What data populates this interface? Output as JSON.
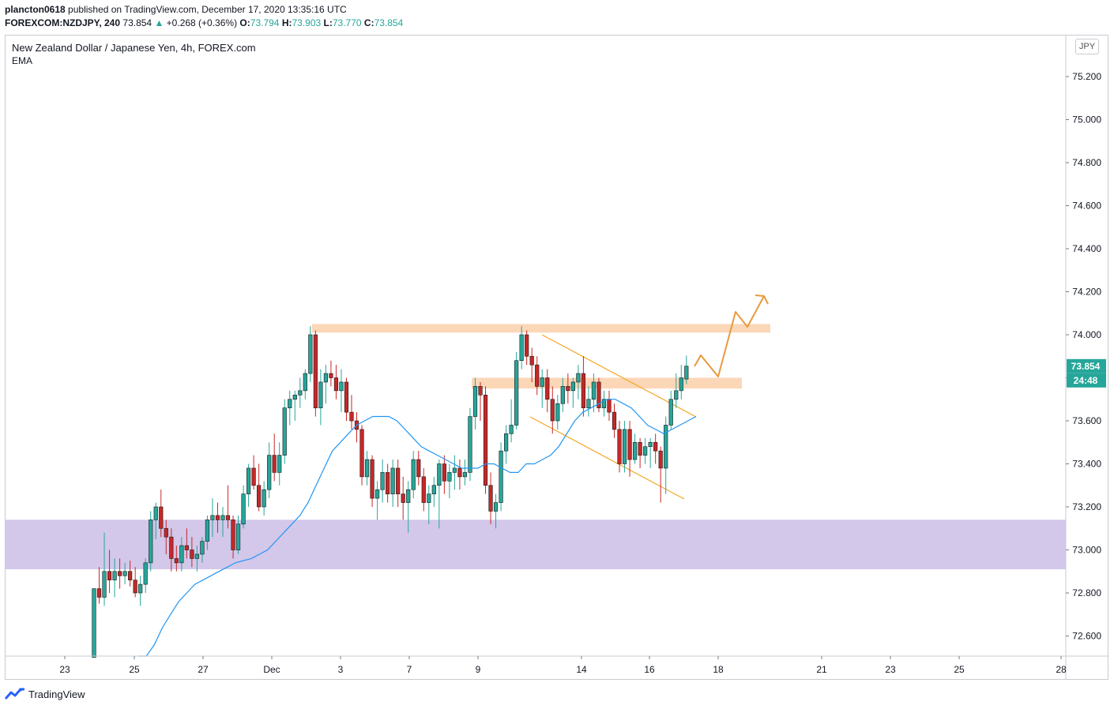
{
  "header": {
    "publisher": "plancton0618",
    "published_text": "published on TradingView.com, December 17, 2020 13:35:16 UTC",
    "symbol": "FOREXCOM:NZDJPY, 240",
    "last": "73.854",
    "change": "+0.268 (+0.36%)",
    "o_label": "O:",
    "o_value": "73.794",
    "h_label": "H:",
    "h_value": "73.903",
    "l_label": "L:",
    "l_value": "73.770",
    "c_label": "C:",
    "c_value": "73.854"
  },
  "legend": {
    "title": "New Zealand Dollar / Japanese Yen, 4h, FOREX.com",
    "indicator": "EMA"
  },
  "currency_button": "JPY",
  "price_badge": "73.854",
  "countdown_badge": "24:48",
  "brand": {
    "name": "TradingView",
    "icon": "tradingview-logo-icon"
  },
  "colors": {
    "up": "#26a69a",
    "down": "#c62828",
    "ema": "#2196f3",
    "channel": "#f5a623",
    "resistance_zone": "#fbd3b0",
    "support_zone": "#d1c4e9",
    "projection": "#e89a3c"
  },
  "chart_data": {
    "type": "candlestick",
    "title": "New Zealand Dollar / Japanese Yen, 4h, FOREX.com",
    "ylim": [
      72.5,
      75.35
    ],
    "y_ticks": [
      "75.200",
      "75.000",
      "74.800",
      "74.600",
      "74.400",
      "74.200",
      "74.000",
      "73.800",
      "73.600",
      "73.400",
      "73.200",
      "73.000",
      "72.800",
      "72.600"
    ],
    "x_ticks": [
      "23",
      "25",
      "27",
      "Dec",
      "3",
      "7",
      "9",
      "14",
      "16",
      "18",
      "21",
      "23",
      "25",
      "28"
    ],
    "series": [
      {
        "name": "NZDJPY",
        "ohlc": [
          [
            72.5,
            72.82,
            72.48,
            72.82
          ],
          [
            72.82,
            72.92,
            72.75,
            72.78
          ],
          [
            72.78,
            73.08,
            72.74,
            72.9
          ],
          [
            72.9,
            73.0,
            72.8,
            72.86
          ],
          [
            72.86,
            72.96,
            72.78,
            72.9
          ],
          [
            72.9,
            72.96,
            72.82,
            72.88
          ],
          [
            72.88,
            72.94,
            72.84,
            72.9
          ],
          [
            72.9,
            72.95,
            72.83,
            72.86
          ],
          [
            72.86,
            72.92,
            72.78,
            72.8
          ],
          [
            72.8,
            72.88,
            72.74,
            72.84
          ],
          [
            72.84,
            72.96,
            72.8,
            72.94
          ],
          [
            72.94,
            73.18,
            72.9,
            73.14
          ],
          [
            73.14,
            73.22,
            73.05,
            73.2
          ],
          [
            73.2,
            73.28,
            73.06,
            73.1
          ],
          [
            73.1,
            73.14,
            72.98,
            73.06
          ],
          [
            73.06,
            73.1,
            72.9,
            72.96
          ],
          [
            72.96,
            73.02,
            72.9,
            72.94
          ],
          [
            72.94,
            73.06,
            72.9,
            73.02
          ],
          [
            73.02,
            73.1,
            72.96,
            73.0
          ],
          [
            73.0,
            73.06,
            72.92,
            72.96
          ],
          [
            72.96,
            73.02,
            72.9,
            72.98
          ],
          [
            72.98,
            73.06,
            72.94,
            73.04
          ],
          [
            73.04,
            73.16,
            73.0,
            73.14
          ],
          [
            73.14,
            73.24,
            73.06,
            73.16
          ],
          [
            73.16,
            73.22,
            73.08,
            73.14
          ],
          [
            73.14,
            73.2,
            73.06,
            73.16
          ],
          [
            73.16,
            73.3,
            73.1,
            73.14
          ],
          [
            73.14,
            73.16,
            72.96,
            73.0
          ],
          [
            73.0,
            73.16,
            72.98,
            73.12
          ],
          [
            73.12,
            73.3,
            73.1,
            73.26
          ],
          [
            73.26,
            73.4,
            73.2,
            73.38
          ],
          [
            73.38,
            73.44,
            73.28,
            73.3
          ],
          [
            73.3,
            73.4,
            73.18,
            73.2
          ],
          [
            73.2,
            73.32,
            73.16,
            73.28
          ],
          [
            73.28,
            73.5,
            73.24,
            73.44
          ],
          [
            73.44,
            73.54,
            73.32,
            73.36
          ],
          [
            73.36,
            73.5,
            73.3,
            73.44
          ],
          [
            73.44,
            73.7,
            73.4,
            73.66
          ],
          [
            73.66,
            73.74,
            73.58,
            73.7
          ],
          [
            73.7,
            73.74,
            73.6,
            73.72
          ],
          [
            73.72,
            73.8,
            73.66,
            73.74
          ],
          [
            73.74,
            73.84,
            73.7,
            73.82
          ],
          [
            73.82,
            74.04,
            73.78,
            74.0
          ],
          [
            74.0,
            74.02,
            73.62,
            73.66
          ],
          [
            73.66,
            73.84,
            73.58,
            73.78
          ],
          [
            73.78,
            73.86,
            73.68,
            73.82
          ],
          [
            73.82,
            73.88,
            73.76,
            73.8
          ],
          [
            73.8,
            73.86,
            73.7,
            73.74
          ],
          [
            73.74,
            73.84,
            73.64,
            73.78
          ],
          [
            73.78,
            73.8,
            73.6,
            73.64
          ],
          [
            73.64,
            73.72,
            73.56,
            73.6
          ],
          [
            73.6,
            73.64,
            73.5,
            73.56
          ],
          [
            73.56,
            73.58,
            73.3,
            73.34
          ],
          [
            73.34,
            73.46,
            73.3,
            73.42
          ],
          [
            73.42,
            73.44,
            73.2,
            73.24
          ],
          [
            73.24,
            73.32,
            73.14,
            73.28
          ],
          [
            73.28,
            73.42,
            73.22,
            73.36
          ],
          [
            73.36,
            73.4,
            73.22,
            73.26
          ],
          [
            73.26,
            73.42,
            73.2,
            73.38
          ],
          [
            73.38,
            73.42,
            73.2,
            73.26
          ],
          [
            73.26,
            73.34,
            73.14,
            73.22
          ],
          [
            73.22,
            73.32,
            73.08,
            73.28
          ],
          [
            73.28,
            73.46,
            73.24,
            73.42
          ],
          [
            73.42,
            73.46,
            73.3,
            73.34
          ],
          [
            73.34,
            73.38,
            73.18,
            73.22
          ],
          [
            73.22,
            73.3,
            73.12,
            73.26
          ],
          [
            73.26,
            73.34,
            73.2,
            73.3
          ],
          [
            73.3,
            73.42,
            73.1,
            73.4
          ],
          [
            73.4,
            73.44,
            73.26,
            73.32
          ],
          [
            73.32,
            73.4,
            73.24,
            73.36
          ],
          [
            73.36,
            73.44,
            73.28,
            73.38
          ],
          [
            73.38,
            73.42,
            73.28,
            73.34
          ],
          [
            73.34,
            73.42,
            73.3,
            73.36
          ],
          [
            73.36,
            73.66,
            73.32,
            73.62
          ],
          [
            73.62,
            73.8,
            73.56,
            73.76
          ],
          [
            73.76,
            73.78,
            73.6,
            73.72
          ],
          [
            73.72,
            73.76,
            73.26,
            73.3
          ],
          [
            73.3,
            73.36,
            73.12,
            73.18
          ],
          [
            73.18,
            73.26,
            73.1,
            73.22
          ],
          [
            73.22,
            73.5,
            73.18,
            73.46
          ],
          [
            73.46,
            73.58,
            73.4,
            73.54
          ],
          [
            73.54,
            73.7,
            73.5,
            73.58
          ],
          [
            73.58,
            73.92,
            73.56,
            73.88
          ],
          [
            73.88,
            74.04,
            73.84,
            74.0
          ],
          [
            74.0,
            74.02,
            73.86,
            73.9
          ],
          [
            73.9,
            73.94,
            73.78,
            73.86
          ],
          [
            73.86,
            73.9,
            73.72,
            73.76
          ],
          [
            73.76,
            73.84,
            73.66,
            73.8
          ],
          [
            73.8,
            73.84,
            73.64,
            73.7
          ],
          [
            73.7,
            73.76,
            73.54,
            73.6
          ],
          [
            73.6,
            73.72,
            73.56,
            73.68
          ],
          [
            73.68,
            73.8,
            73.64,
            73.76
          ],
          [
            73.76,
            73.82,
            73.68,
            73.74
          ],
          [
            73.74,
            73.8,
            73.66,
            73.78
          ],
          [
            73.78,
            73.86,
            73.7,
            73.82
          ],
          [
            73.82,
            73.9,
            73.62,
            73.66
          ],
          [
            73.66,
            73.76,
            73.62,
            73.7
          ],
          [
            73.7,
            73.82,
            73.64,
            73.78
          ],
          [
            73.78,
            73.8,
            73.64,
            73.66
          ],
          [
            73.66,
            73.74,
            73.62,
            73.7
          ],
          [
            73.7,
            73.74,
            73.6,
            73.64
          ],
          [
            73.64,
            73.68,
            73.52,
            73.56
          ],
          [
            73.56,
            73.6,
            73.36,
            73.4
          ],
          [
            73.4,
            73.6,
            73.36,
            73.56
          ],
          [
            73.56,
            73.6,
            73.34,
            73.42
          ],
          [
            73.42,
            73.54,
            73.4,
            73.5
          ],
          [
            73.5,
            73.52,
            73.38,
            73.44
          ],
          [
            73.44,
            73.52,
            73.4,
            73.48
          ],
          [
            73.48,
            73.52,
            73.38,
            73.5
          ],
          [
            73.5,
            73.54,
            73.4,
            73.46
          ],
          [
            73.46,
            73.48,
            73.22,
            73.38
          ],
          [
            73.38,
            73.62,
            73.26,
            73.58
          ],
          [
            73.58,
            73.74,
            73.56,
            73.7
          ],
          [
            73.7,
            73.82,
            73.66,
            73.74
          ],
          [
            73.74,
            73.86,
            73.7,
            73.8
          ],
          [
            73.794,
            73.903,
            73.77,
            73.854
          ]
        ]
      }
    ],
    "ema_values": [
      72.4,
      72.48,
      72.56,
      72.64,
      72.7,
      72.76,
      72.8,
      72.84,
      72.86,
      72.88,
      72.9,
      72.92,
      72.94,
      72.95,
      72.96,
      72.98,
      73.0,
      73.04,
      73.08,
      73.12,
      73.16,
      73.22,
      73.3,
      73.38,
      73.46,
      73.5,
      73.54,
      73.58,
      73.6,
      73.62,
      73.62,
      73.62,
      73.6,
      73.56,
      73.52,
      73.48,
      73.46,
      73.44,
      73.42,
      73.4,
      73.38,
      73.38,
      73.38,
      73.4,
      73.4,
      73.38,
      73.36,
      73.36,
      73.4,
      73.4,
      73.42,
      73.44,
      73.48,
      73.54,
      73.6,
      73.64,
      73.66,
      73.68,
      73.7,
      73.7,
      73.68,
      73.66,
      73.62,
      73.58,
      73.56,
      73.54,
      73.56,
      73.58,
      73.6,
      73.62
    ],
    "annotations": [
      {
        "type": "resistance_zone",
        "y_top": 74.05,
        "y_bottom": 74.01
      },
      {
        "type": "breakout_zone",
        "y_top": 73.8,
        "y_bottom": 73.75
      },
      {
        "type": "support_zone",
        "y_top": 73.14,
        "y_bottom": 72.91
      }
    ]
  }
}
